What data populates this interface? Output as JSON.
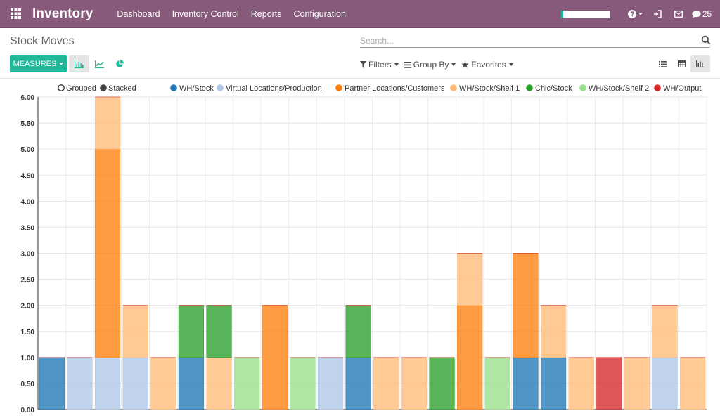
{
  "navbar": {
    "brand": "Inventory",
    "menu": [
      "Dashboard",
      "Inventory Control",
      "Reports",
      "Configuration"
    ],
    "progress_fraction": 0.04,
    "messages_count": "25",
    "icons": [
      "apps-grid-icon",
      "help-icon",
      "sign-in-icon",
      "envelope-icon",
      "chat-bubble-icon"
    ]
  },
  "control_panel": {
    "title": "Stock Moves",
    "search_placeholder": "Search...",
    "measures_label": "MEASURES",
    "filters_label": "Filters",
    "group_by_label": "Group By",
    "favorites_label": "Favorites",
    "graph_modes": [
      "bar-chart-icon",
      "line-chart-icon",
      "pie-chart-icon"
    ],
    "active_graph_mode": "bar",
    "views": [
      "list-view-icon",
      "pivot-view-icon",
      "graph-view-icon"
    ],
    "active_view": "graph"
  },
  "chart_data": {
    "type": "bar",
    "stacked": true,
    "controls": {
      "grouped_label": "Grouped",
      "stacked_label": "Stacked",
      "selected": "stacked"
    },
    "ylim": [
      0,
      6
    ],
    "yticks": [
      "0.00",
      "0.50",
      "1.00",
      "1.50",
      "2.00",
      "2.50",
      "3.00",
      "3.50",
      "4.00",
      "4.50",
      "5.00",
      "5.50",
      "6.00"
    ],
    "grid": true,
    "legend_position": "top",
    "series": [
      {
        "name": "WH/Stock",
        "color": "#1f77b4",
        "values": [
          1,
          0,
          0,
          0,
          0,
          1,
          0,
          0,
          0,
          0,
          0,
          1,
          0,
          0,
          0,
          0,
          0,
          1,
          1,
          0,
          0,
          0,
          0,
          0
        ]
      },
      {
        "name": "Virtual Locations/Production",
        "color": "#aec7e8",
        "values": [
          0,
          1,
          1,
          1,
          0,
          0,
          0,
          0,
          0,
          0,
          1,
          0,
          0,
          0,
          0,
          0,
          0,
          0,
          0,
          0,
          0,
          0,
          1,
          0
        ]
      },
      {
        "name": "Partner Locations/Customers",
        "color": "#ff7f0e",
        "values": [
          0,
          0,
          4,
          0,
          0,
          0,
          0,
          0,
          2,
          0,
          0,
          0,
          0,
          0,
          0,
          2,
          0,
          2,
          0,
          0,
          0,
          0,
          0,
          0
        ]
      },
      {
        "name": "WH/Stock/Shelf 1",
        "color": "#ffbb78",
        "values": [
          0,
          0,
          1,
          1,
          1,
          0,
          1,
          0,
          0,
          0,
          0,
          0,
          1,
          1,
          0,
          1,
          0,
          0,
          1,
          1,
          0,
          1,
          1,
          1
        ]
      },
      {
        "name": "Chic/Stock",
        "color": "#2ca02c",
        "values": [
          0,
          0,
          0,
          0,
          0,
          1,
          1,
          0,
          0,
          0,
          0,
          1,
          0,
          0,
          1,
          0,
          0,
          0,
          0,
          0,
          0,
          0,
          0,
          0
        ]
      },
      {
        "name": "WH/Stock/Shelf 2",
        "color": "#98df8a",
        "values": [
          0,
          0,
          0,
          0,
          0,
          0,
          0,
          1,
          0,
          1,
          0,
          0,
          0,
          0,
          0,
          0,
          1,
          0,
          0,
          0,
          0,
          0,
          0,
          0
        ]
      },
      {
        "name": "WH/Output",
        "color": "#d62728",
        "values": [
          0,
          0,
          0,
          0,
          0,
          0,
          0,
          0,
          0,
          0,
          0,
          0,
          0,
          0,
          0,
          0,
          0,
          0,
          0,
          0,
          1,
          0,
          0,
          0
        ]
      }
    ]
  }
}
